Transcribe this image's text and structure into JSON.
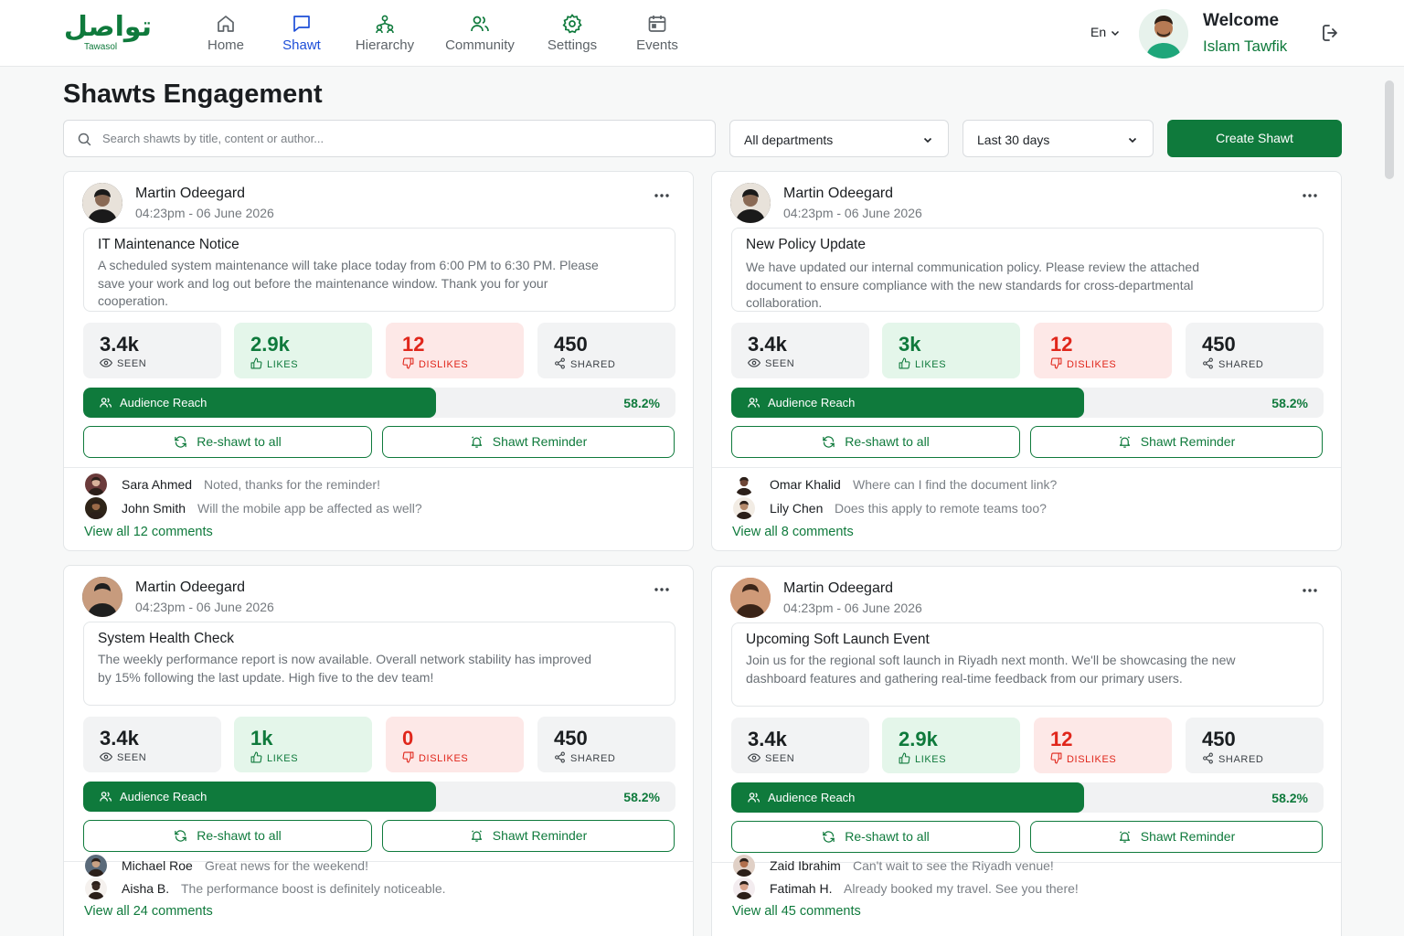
{
  "app": {
    "logo_arabic": "تواصل",
    "logo_latin": "Tawasol"
  },
  "nav": [
    {
      "label": "Home",
      "icon": "home-icon"
    },
    {
      "label": "Shawt",
      "icon": "chat-icon",
      "active": true
    },
    {
      "label": "Hierarchy",
      "icon": "hierarchy-icon"
    },
    {
      "label": "Community",
      "icon": "community-icon"
    },
    {
      "label": "Settings",
      "icon": "gear-icon"
    },
    {
      "label": "Events",
      "icon": "calendar-icon"
    }
  ],
  "header": {
    "language": "En",
    "welcome": "Welcome",
    "username": "Islam Tawfik"
  },
  "page": {
    "title": "Shawts Engagement",
    "search_placeholder": "Search shawts by title, content or author...",
    "department_filter": "All departments",
    "date_filter": "Last 30 days",
    "create_button": "Create Shawt"
  },
  "labels": {
    "seen": "SEEN",
    "likes": "LIKES",
    "dislikes": "DISLIKES",
    "shared": "SHARED",
    "audience_reach": "Audience Reach",
    "reshawt": "Re-shawt to all",
    "reminder": "Shawt Reminder"
  },
  "colors": {
    "brand": "#0f7a3c",
    "active_nav": "#1d4ed8",
    "dislike": "#e0261b"
  },
  "cards": [
    {
      "author": "Martin Odeegard",
      "time": "04:23pm - 06 June 2026",
      "title": "IT Maintenance Notice",
      "body": "A scheduled system maintenance will take place today from 6:00 PM to 6:30 PM. Please save your work and log out before the maintenance window. Thank you for your cooperation.",
      "seen": "3.4k",
      "likes": "2.9k",
      "dislikes": "12",
      "shared": "450",
      "reach_percent": "58.2%",
      "reach_value": 58.2,
      "comments": [
        {
          "name": "Sara Ahmed",
          "text": "Noted, thanks for the reminder!"
        },
        {
          "name": "John Smith",
          "text": "Will the mobile app be affected as well?"
        }
      ],
      "view_all": "View all 12 comments"
    },
    {
      "author": "Martin Odeegard",
      "time": "04:23pm - 06 June 2026",
      "title": "New Policy Update",
      "body": "We have updated our internal communication policy. Please review the attached document to ensure compliance with the new standards for cross-departmental collaboration.",
      "seen": "3.4k",
      "likes": "3k",
      "dislikes": "12",
      "shared": "450",
      "reach_percent": "58.2%",
      "reach_value": 58.2,
      "comments": [
        {
          "name": "Omar Khalid",
          "text": "Where can I find the document link?"
        },
        {
          "name": "Lily Chen",
          "text": "Does this apply to remote teams too?"
        }
      ],
      "view_all": "View all 8 comments"
    },
    {
      "author": "Martin Odeegard",
      "time": "04:23pm - 06 June 2026",
      "title": "System Health Check",
      "body": "The weekly performance report is now available. Overall network stability has improved by 15% following the last update. High five to the dev team!",
      "seen": "3.4k",
      "likes": "1k",
      "dislikes": "0",
      "shared": "450",
      "reach_percent": "58.2%",
      "reach_value": 58.2,
      "comments": [
        {
          "name": "Michael Roe",
          "text": "Great news for the weekend!"
        },
        {
          "name": "Aisha B.",
          "text": "The performance boost is definitely noticeable."
        }
      ],
      "view_all": "View all 24 comments"
    },
    {
      "author": "Martin Odeegard",
      "time": "04:23pm - 06 June 2026",
      "title": "Upcoming Soft Launch Event",
      "body": "Join us for the regional soft launch in Riyadh next month. We'll be showcasing the new dashboard features and gathering real-time feedback from our primary users.",
      "seen": "3.4k",
      "likes": "2.9k",
      "dislikes": "12",
      "shared": "450",
      "reach_percent": "58.2%",
      "reach_value": 58.2,
      "comments": [
        {
          "name": "Zaid Ibrahim",
          "text": "Can't wait to see the Riyadh venue!"
        },
        {
          "name": "Fatimah H.",
          "text": "Already booked my travel. See you there!"
        }
      ],
      "view_all": "View all 45 comments"
    }
  ]
}
